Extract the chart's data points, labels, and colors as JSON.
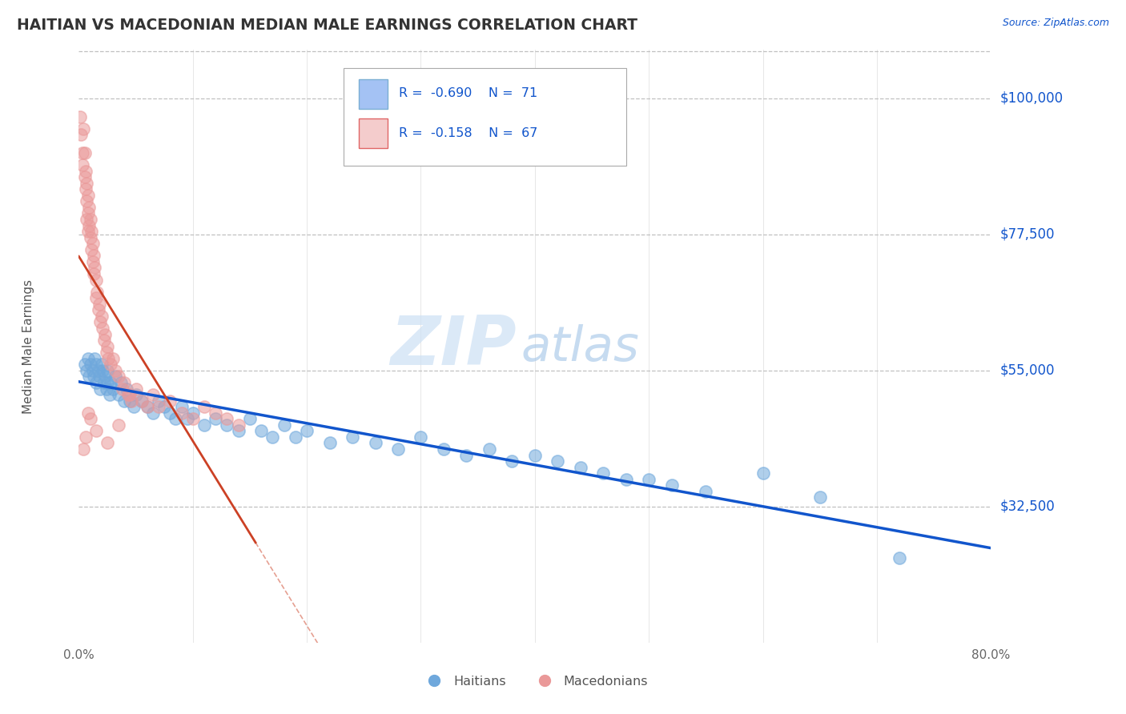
{
  "title": "HAITIAN VS MACEDONIAN MEDIAN MALE EARNINGS CORRELATION CHART",
  "source_text": "Source: ZipAtlas.com",
  "ylabel": "Median Male Earnings",
  "x_min": 0.0,
  "x_max": 0.8,
  "y_min": 10000,
  "y_max": 108000,
  "yticks": [
    32500,
    55000,
    77500,
    100000
  ],
  "ytick_labels": [
    "$32,500",
    "$55,000",
    "$77,500",
    "$100,000"
  ],
  "xticks": [
    0.0,
    0.8
  ],
  "xtick_labels": [
    "0.0%",
    "80.0%"
  ],
  "haitian_color": "#6fa8dc",
  "macedonian_color": "#ea9999",
  "haitian_line_color": "#1155cc",
  "macedonian_line_color": "#cc4125",
  "haitian_R": -0.69,
  "haitian_N": 71,
  "macedonian_R": -0.158,
  "macedonian_N": 67,
  "watermark_zip": "ZIP",
  "watermark_atlas": "atlas",
  "background_color": "#ffffff",
  "grid_color": "#c0c0c0",
  "legend_label_haitian": "Haitians",
  "legend_label_macedonian": "Macedonians",
  "haitian_x": [
    0.005,
    0.007,
    0.008,
    0.009,
    0.01,
    0.012,
    0.013,
    0.014,
    0.015,
    0.015,
    0.017,
    0.018,
    0.019,
    0.02,
    0.021,
    0.022,
    0.023,
    0.024,
    0.025,
    0.025,
    0.027,
    0.028,
    0.03,
    0.032,
    0.035,
    0.037,
    0.04,
    0.042,
    0.045,
    0.048,
    0.05,
    0.055,
    0.06,
    0.065,
    0.07,
    0.075,
    0.08,
    0.085,
    0.09,
    0.095,
    0.1,
    0.11,
    0.12,
    0.13,
    0.14,
    0.15,
    0.16,
    0.17,
    0.18,
    0.19,
    0.2,
    0.22,
    0.24,
    0.26,
    0.28,
    0.3,
    0.32,
    0.34,
    0.36,
    0.38,
    0.4,
    0.42,
    0.44,
    0.46,
    0.48,
    0.5,
    0.52,
    0.55,
    0.6,
    0.65,
    0.72
  ],
  "haitian_y": [
    56000,
    55000,
    57000,
    54000,
    56000,
    55000,
    54000,
    57000,
    56000,
    53000,
    55000,
    54000,
    52000,
    56000,
    55000,
    53000,
    54000,
    52000,
    55000,
    53000,
    51000,
    53000,
    52000,
    54000,
    51000,
    53000,
    50000,
    52000,
    50000,
    49000,
    51000,
    50000,
    49000,
    48000,
    50000,
    49000,
    48000,
    47000,
    49000,
    47000,
    48000,
    46000,
    47000,
    46000,
    45000,
    47000,
    45000,
    44000,
    46000,
    44000,
    45000,
    43000,
    44000,
    43000,
    42000,
    44000,
    42000,
    41000,
    42000,
    40000,
    41000,
    40000,
    39000,
    38000,
    37000,
    37000,
    36000,
    35000,
    38000,
    34000,
    24000
  ],
  "macedonian_x": [
    0.001,
    0.002,
    0.003,
    0.003,
    0.004,
    0.005,
    0.005,
    0.006,
    0.006,
    0.007,
    0.007,
    0.007,
    0.008,
    0.008,
    0.008,
    0.009,
    0.009,
    0.01,
    0.01,
    0.011,
    0.011,
    0.012,
    0.012,
    0.013,
    0.013,
    0.014,
    0.015,
    0.015,
    0.016,
    0.017,
    0.018,
    0.019,
    0.02,
    0.021,
    0.022,
    0.023,
    0.024,
    0.025,
    0.026,
    0.028,
    0.03,
    0.032,
    0.035,
    0.038,
    0.04,
    0.043,
    0.046,
    0.05,
    0.055,
    0.06,
    0.065,
    0.07,
    0.08,
    0.09,
    0.1,
    0.11,
    0.12,
    0.13,
    0.045,
    0.035,
    0.025,
    0.015,
    0.01,
    0.008,
    0.006,
    0.004,
    0.14
  ],
  "macedonian_y": [
    97000,
    94000,
    91000,
    89000,
    95000,
    91000,
    87000,
    88000,
    85000,
    86000,
    83000,
    80000,
    84000,
    81000,
    78000,
    82000,
    79000,
    80000,
    77000,
    78000,
    75000,
    76000,
    73000,
    74000,
    71000,
    72000,
    70000,
    67000,
    68000,
    65000,
    66000,
    63000,
    64000,
    62000,
    60000,
    61000,
    58000,
    59000,
    57000,
    56000,
    57000,
    55000,
    54000,
    52000,
    53000,
    51000,
    50000,
    52000,
    50000,
    49000,
    51000,
    49000,
    50000,
    48000,
    47000,
    49000,
    48000,
    47000,
    51000,
    46000,
    43000,
    45000,
    47000,
    48000,
    44000,
    42000,
    46000
  ]
}
